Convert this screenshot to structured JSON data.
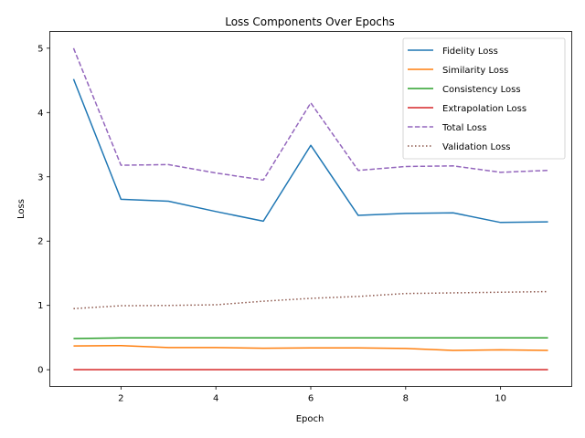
{
  "chart_data": {
    "type": "line",
    "title": "Loss Components Over Epochs",
    "xlabel": "Epoch",
    "ylabel": "Loss",
    "x": [
      1,
      2,
      3,
      4,
      5,
      6,
      7,
      8,
      9,
      10,
      11
    ],
    "xlim": [
      0.5,
      11.5
    ],
    "ylim": [
      -0.26,
      5.26
    ],
    "xticks": [
      2,
      4,
      6,
      8,
      10
    ],
    "yticks": [
      0,
      1,
      2,
      3,
      4,
      5
    ],
    "grid": false,
    "legend_position": "top-right",
    "series": [
      {
        "name": "Fidelity Loss",
        "color": "#1f77b4",
        "dash": "solid",
        "values": [
          4.52,
          2.65,
          2.62,
          2.46,
          2.31,
          3.49,
          2.4,
          2.43,
          2.44,
          2.29,
          2.3
        ]
      },
      {
        "name": "Similarity Loss",
        "color": "#ff7f0e",
        "dash": "solid",
        "values": [
          0.37,
          0.375,
          0.345,
          0.345,
          0.335,
          0.34,
          0.34,
          0.33,
          0.3,
          0.31,
          0.3
        ]
      },
      {
        "name": "Consistency Loss",
        "color": "#2ca02c",
        "dash": "solid",
        "values": [
          0.485,
          0.495,
          0.495,
          0.495,
          0.495,
          0.495,
          0.495,
          0.495,
          0.495,
          0.495,
          0.495
        ]
      },
      {
        "name": "Extrapolation Loss",
        "color": "#d62728",
        "dash": "solid",
        "values": [
          0.0,
          0.0,
          0.0,
          0.0,
          0.0,
          0.0,
          0.0,
          0.0,
          0.0,
          0.0,
          0.0
        ]
      },
      {
        "name": "Total Loss",
        "color": "#9467bd",
        "dash": "dashed",
        "values": [
          5.0,
          3.18,
          3.19,
          3.06,
          2.95,
          4.15,
          3.1,
          3.16,
          3.17,
          3.07,
          3.1
        ]
      },
      {
        "name": "Validation Loss",
        "color": "#8c564b",
        "dash": "dotted",
        "values": [
          0.95,
          0.995,
          1.0,
          1.01,
          1.065,
          1.11,
          1.14,
          1.185,
          1.195,
          1.205,
          1.215
        ]
      }
    ]
  }
}
